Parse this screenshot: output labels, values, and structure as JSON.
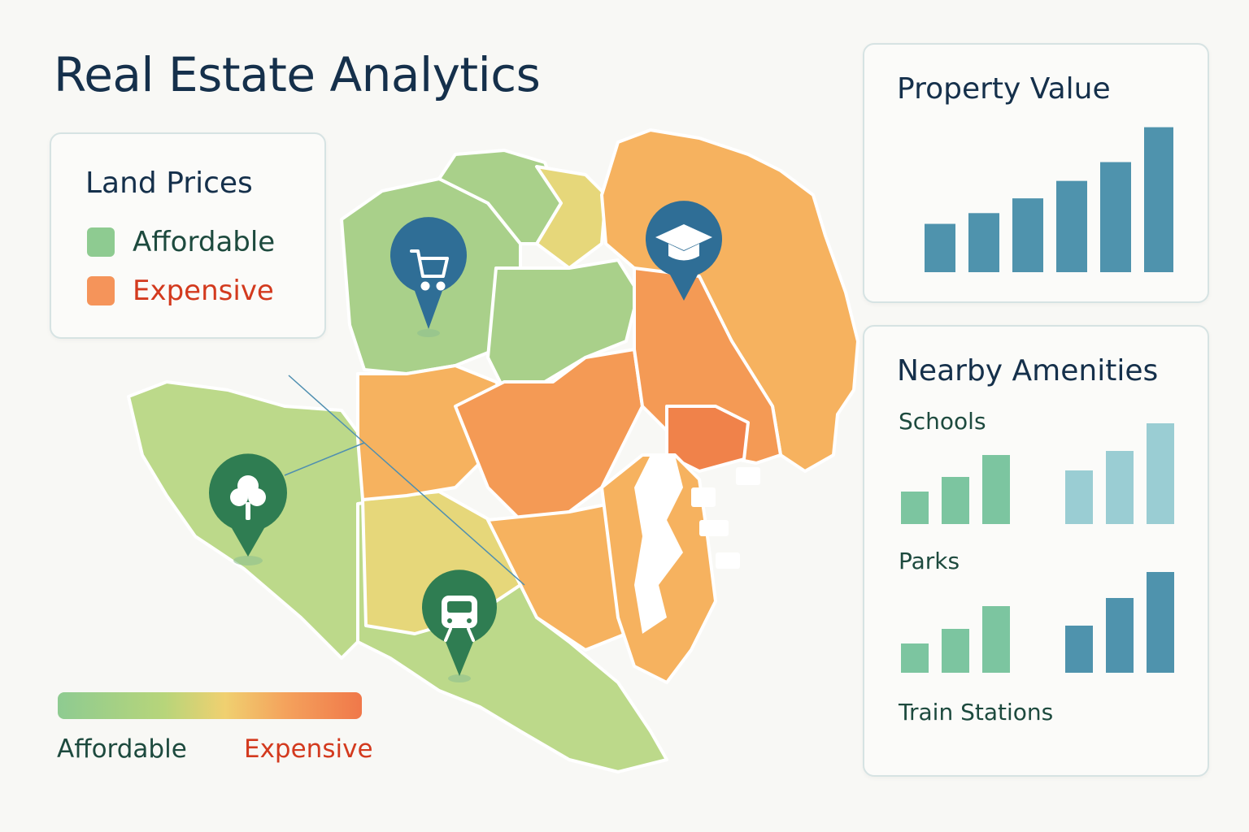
{
  "header": {
    "title": "Real Estate Analytics"
  },
  "legend": {
    "title": "Land Prices",
    "items": [
      {
        "label": "Affordable",
        "color": "#8ecb91",
        "text_color": "#1d4a3e"
      },
      {
        "label": "Expensive",
        "color": "#f5945a",
        "text_color": "#d33a1e"
      }
    ]
  },
  "scale": {
    "low_label": "Affordable",
    "high_label": "Expensive",
    "low_color": "#1d4a3e",
    "high_color": "#d33a1e"
  },
  "map": {
    "colors": {
      "green_light": "#bcd98a",
      "green": "#a9d08a",
      "yellow": "#e6d77a",
      "orange_light": "#f6b25f",
      "orange": "#f49a55",
      "orange_dark": "#f0824a",
      "water": "#ffffff"
    },
    "markers": [
      {
        "name": "shopping",
        "icon": "cart-icon",
        "color": "#2f6e96"
      },
      {
        "name": "school",
        "icon": "graduation-cap-icon",
        "color": "#2f6e96"
      },
      {
        "name": "park",
        "icon": "tree-icon",
        "color": "#2f7d52"
      },
      {
        "name": "train",
        "icon": "train-icon",
        "color": "#2f7d52"
      }
    ]
  },
  "property_value": {
    "title": "Property Value",
    "chart_data": {
      "type": "bar",
      "values": [
        36,
        44,
        55,
        68,
        82,
        108
      ],
      "ylim": [
        0,
        115
      ],
      "color": "#4f93ad"
    }
  },
  "amenities": {
    "title": "Nearby Amenities",
    "sections": [
      {
        "label": "Schools"
      },
      {
        "label": "Parks"
      },
      {
        "label": "Train Stations"
      }
    ],
    "chart_data": [
      {
        "type": "bar",
        "groups": [
          {
            "values": [
              40,
              58,
              85
            ],
            "color": "#7cc5a0"
          },
          {
            "values": [
              66,
              90,
              124
            ],
            "color": "#9acdd3"
          }
        ],
        "ylim": [
          0,
          130
        ]
      },
      {
        "type": "bar",
        "groups": [
          {
            "values": [
              36,
              54,
              82
            ],
            "color": "#7cc5a0"
          },
          {
            "values": [
              58,
              92,
              124
            ],
            "color": "#4f93ad"
          }
        ],
        "ylim": [
          0,
          130
        ]
      }
    ]
  }
}
